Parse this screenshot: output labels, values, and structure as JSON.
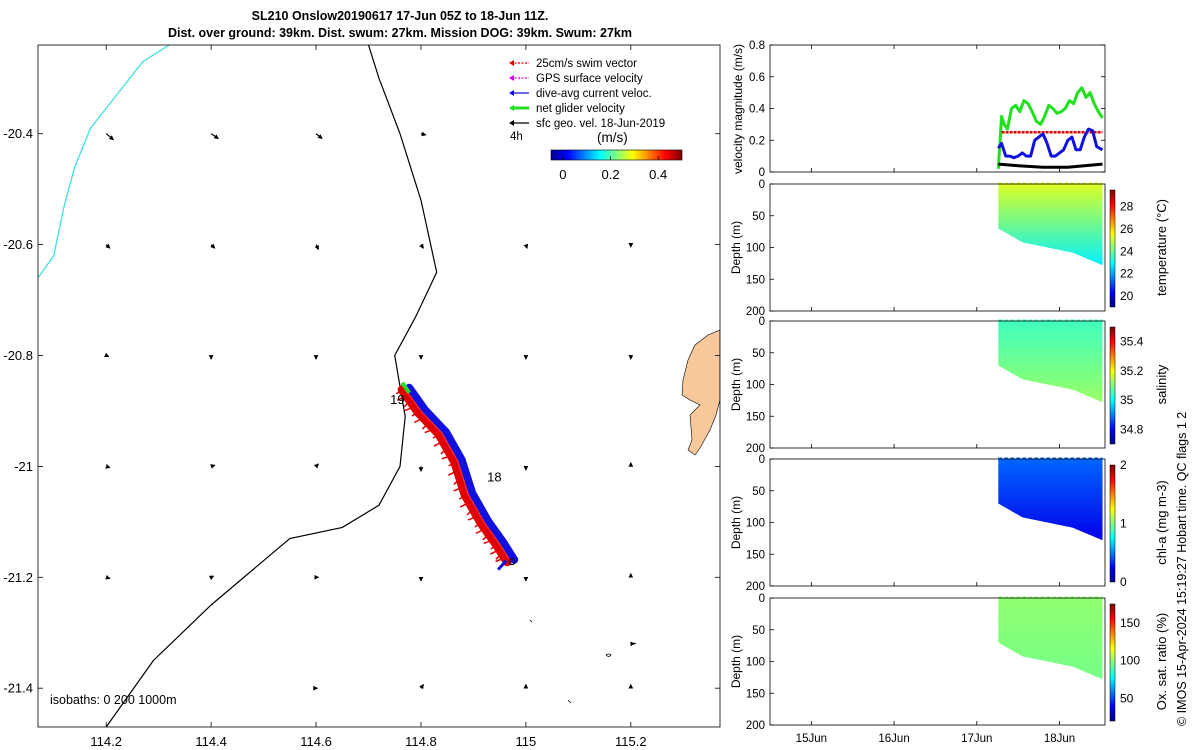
{
  "title_line1": "SL210 Onslow20190617 17-Jun 05Z to 18-Jun 11Z.",
  "title_line2": "Dist. over ground: 39km. Dist. swum: 27km. Mission DOG: 39km. Swum: 27km",
  "footer_vertical": "© IMOS 15-Apr-2024 15:19:27 Hobart time. QC flags 1  2",
  "colors": {
    "swim": "#e00000",
    "gps": "#e000e0",
    "dive_avg": "#1010e0",
    "net": "#20e020",
    "sfc_geo": "#000000",
    "isobath_0": "#40e0e0",
    "land": "#f8c89a"
  },
  "chart_data": [
    {
      "type": "map",
      "name": "glider track map",
      "xticks": [
        "114.2",
        "114.4",
        "114.6",
        "114.8",
        "115",
        "115.2"
      ],
      "xtick_values": [
        114.2,
        114.4,
        114.6,
        114.8,
        115.0,
        115.2
      ],
      "yticks": [
        "-20.4",
        "-20.6",
        "-20.8",
        "-21",
        "-21.2",
        "-21.4"
      ],
      "ytick_values": [
        -20.4,
        -20.6,
        -20.8,
        -21.0,
        -21.2,
        -21.4
      ],
      "xlim": [
        114.07,
        115.37
      ],
      "ylim": [
        -21.47,
        -20.24
      ],
      "legend": [
        {
          "label": "25cm/s swim vector",
          "color": "#e00000"
        },
        {
          "label": "GPS surface velocity",
          "color": "#e000e0"
        },
        {
          "label": "dive-avg current veloc.",
          "color": "#1010e0"
        },
        {
          "label": "net glider velocity",
          "color": "#20e020"
        },
        {
          "label": "sfc geo. vel. 18-Jun-2019",
          "color": "#000000"
        }
      ],
      "legend_extra": "4h",
      "colorbar": {
        "label": "(m/s)",
        "ticks": [
          "0",
          "0.2",
          "0.4"
        ],
        "tick_values": [
          0,
          0.2,
          0.4
        ],
        "range": [
          -0.05,
          0.5
        ]
      },
      "day_labels": [
        {
          "text": "19",
          "lon": 114.755,
          "lat": -20.88
        },
        {
          "text": "18",
          "lon": 114.94,
          "lat": -21.02
        }
      ],
      "isobath_text": "isobaths: 0   200  1000m",
      "track": [
        [
          114.77,
          -20.86
        ],
        [
          114.8,
          -20.9
        ],
        [
          114.84,
          -20.94
        ],
        [
          114.87,
          -20.99
        ],
        [
          114.89,
          -21.05
        ],
        [
          114.92,
          -21.1
        ],
        [
          114.95,
          -21.14
        ],
        [
          114.97,
          -21.17
        ]
      ],
      "isobath_0": [
        [
          114.07,
          -20.66
        ],
        [
          114.1,
          -20.62
        ],
        [
          114.12,
          -20.53
        ],
        [
          114.14,
          -20.46
        ],
        [
          114.17,
          -20.39
        ],
        [
          114.22,
          -20.33
        ],
        [
          114.27,
          -20.27
        ],
        [
          114.32,
          -20.24
        ]
      ],
      "isobath_200": [
        [
          114.2,
          -21.47
        ],
        [
          114.29,
          -21.35
        ],
        [
          114.4,
          -21.25
        ],
        [
          114.55,
          -21.13
        ],
        [
          114.65,
          -21.11
        ],
        [
          114.72,
          -21.07
        ],
        [
          114.76,
          -21.0
        ],
        [
          114.77,
          -20.91
        ],
        [
          114.75,
          -20.8
        ],
        [
          114.79,
          -20.73
        ],
        [
          114.83,
          -20.65
        ],
        [
          114.8,
          -20.52
        ],
        [
          114.76,
          -20.4
        ],
        [
          114.72,
          -20.3
        ],
        [
          114.7,
          -20.24
        ]
      ],
      "vectors": [
        {
          "lon": 114.2,
          "lat": -20.4,
          "u": 0.06,
          "v": -0.05
        },
        {
          "lon": 114.4,
          "lat": -20.4,
          "u": 0.06,
          "v": -0.04
        },
        {
          "lon": 114.6,
          "lat": -20.4,
          "u": 0.05,
          "v": -0.04
        },
        {
          "lon": 114.8,
          "lat": -20.4,
          "u": 0.04,
          "v": -0.01
        },
        {
          "lon": 114.2,
          "lat": -20.6,
          "u": 0.03,
          "v": -0.03
        },
        {
          "lon": 114.4,
          "lat": -20.6,
          "u": 0.03,
          "v": -0.03
        },
        {
          "lon": 114.6,
          "lat": -20.6,
          "u": 0.02,
          "v": -0.04
        },
        {
          "lon": 114.8,
          "lat": -20.6,
          "u": 0.02,
          "v": -0.03
        },
        {
          "lon": 115.0,
          "lat": -20.6,
          "u": 0.01,
          "v": -0.03
        },
        {
          "lon": 115.2,
          "lat": -20.6,
          "u": 0.0,
          "v": -0.02
        },
        {
          "lon": 114.2,
          "lat": -20.8,
          "u": 0.02,
          "v": -0.01
        },
        {
          "lon": 114.4,
          "lat": -20.8,
          "u": 0.0,
          "v": -0.03
        },
        {
          "lon": 114.6,
          "lat": -20.8,
          "u": 0.0,
          "v": -0.03
        },
        {
          "lon": 114.8,
          "lat": -20.8,
          "u": 0.0,
          "v": -0.03
        },
        {
          "lon": 115.0,
          "lat": -20.8,
          "u": 0.0,
          "v": -0.03
        },
        {
          "lon": 115.2,
          "lat": -20.8,
          "u": 0.0,
          "v": -0.03
        },
        {
          "lon": 114.2,
          "lat": -21.0,
          "u": 0.03,
          "v": -0.01
        },
        {
          "lon": 114.4,
          "lat": -21.0,
          "u": 0.03,
          "v": 0.01
        },
        {
          "lon": 114.6,
          "lat": -21.0,
          "u": 0.02,
          "v": 0.02
        },
        {
          "lon": 114.8,
          "lat": -21.0,
          "u": 0.0,
          "v": -0.04
        },
        {
          "lon": 115.0,
          "lat": -21.0,
          "u": 0.0,
          "v": -0.03
        },
        {
          "lon": 115.2,
          "lat": -21.0,
          "u": 0.0,
          "v": 0.03
        },
        {
          "lon": 114.2,
          "lat": -21.2,
          "u": 0.03,
          "v": -0.01
        },
        {
          "lon": 114.4,
          "lat": -21.2,
          "u": 0.02,
          "v": 0.01
        },
        {
          "lon": 114.6,
          "lat": -21.2,
          "u": 0.02,
          "v": 0.0
        },
        {
          "lon": 114.8,
          "lat": -21.2,
          "u": 0.0,
          "v": -0.03
        },
        {
          "lon": 115.0,
          "lat": -21.2,
          "u": 0.0,
          "v": -0.03
        },
        {
          "lon": 115.2,
          "lat": -21.2,
          "u": 0.0,
          "v": 0.03
        },
        {
          "lon": 115.2,
          "lat": -21.32,
          "u": 0.03,
          "v": 0.0
        },
        {
          "lon": 114.6,
          "lat": -21.4,
          "u": 0.01,
          "v": 0.0
        },
        {
          "lon": 114.8,
          "lat": -21.4,
          "u": 0.02,
          "v": 0.03
        },
        {
          "lon": 115.0,
          "lat": -21.4,
          "u": 0.0,
          "v": 0.03
        },
        {
          "lon": 115.2,
          "lat": -21.4,
          "u": 0.0,
          "v": 0.03
        }
      ]
    },
    {
      "type": "line",
      "name": "velocity magnitude",
      "ylabel": "velocity magnitude (m/s)",
      "ylim": [
        0,
        0.8
      ],
      "yticks": [
        "0",
        "0.2",
        "0.4",
        "0.6",
        "0.8"
      ],
      "ytick_values": [
        0,
        0.2,
        0.4,
        0.6,
        0.8
      ],
      "xlim": [
        14.5,
        18.55
      ],
      "series": [
        {
          "color": "#20e020",
          "x": [
            17.26,
            17.3,
            17.33,
            17.37,
            17.42,
            17.47,
            17.52,
            17.57,
            17.62,
            17.67,
            17.72,
            17.77,
            17.82,
            17.87,
            17.92,
            17.97,
            18.02,
            18.07,
            18.12,
            18.17,
            18.22,
            18.27,
            18.32,
            18.37,
            18.42,
            18.47,
            18.52
          ],
          "values": [
            0.02,
            0.35,
            0.3,
            0.27,
            0.4,
            0.42,
            0.38,
            0.45,
            0.43,
            0.38,
            0.32,
            0.3,
            0.35,
            0.42,
            0.4,
            0.37,
            0.38,
            0.4,
            0.45,
            0.43,
            0.5,
            0.53,
            0.47,
            0.5,
            0.43,
            0.38,
            0.34
          ]
        },
        {
          "color": "#e00000",
          "x": [
            17.3,
            18.52
          ],
          "values": [
            0.25,
            0.25
          ]
        },
        {
          "color": "#1010e0",
          "x": [
            17.26,
            17.3,
            17.35,
            17.4,
            17.45,
            17.5,
            17.55,
            17.6,
            17.65,
            17.7,
            17.75,
            17.8,
            17.85,
            17.9,
            17.95,
            18.0,
            18.05,
            18.1,
            18.15,
            18.2,
            18.25,
            18.3,
            18.35,
            18.4,
            18.45,
            18.52
          ],
          "values": [
            0.15,
            0.18,
            0.1,
            0.1,
            0.09,
            0.1,
            0.12,
            0.1,
            0.1,
            0.2,
            0.22,
            0.24,
            0.18,
            0.1,
            0.1,
            0.12,
            0.14,
            0.2,
            0.22,
            0.14,
            0.14,
            0.22,
            0.27,
            0.26,
            0.16,
            0.14
          ]
        },
        {
          "color": "#000000",
          "x": [
            17.26,
            17.5,
            17.8,
            18.1,
            18.3,
            18.52
          ],
          "values": [
            0.05,
            0.04,
            0.03,
            0.03,
            0.04,
            0.05
          ]
        }
      ]
    },
    {
      "type": "heatmap",
      "name": "temperature section",
      "ylabel": "Depth (m)",
      "ylim": [
        0,
        200
      ],
      "yticks": [
        "0",
        "50",
        "100",
        "150",
        "200"
      ],
      "ytick_values": [
        0,
        50,
        100,
        150,
        200
      ],
      "colorbar_label": "temperature (°C)",
      "colorbar_ticks": [
        "20",
        "22",
        "24",
        "26",
        "28"
      ],
      "colorbar_values": [
        20,
        22,
        24,
        26,
        28
      ],
      "colorbar_range": [
        19,
        29.5
      ],
      "surface_value": 25.2,
      "deep_value": 22.8
    },
    {
      "type": "heatmap",
      "name": "salinity section",
      "ylabel": "Depth (m)",
      "ylim": [
        0,
        200
      ],
      "yticks": [
        "0",
        "50",
        "100",
        "150",
        "200"
      ],
      "ytick_values": [
        0,
        50,
        100,
        150,
        200
      ],
      "colorbar_label": "salinity",
      "colorbar_ticks": [
        "34.8",
        "35",
        "35.2",
        "35.4"
      ],
      "colorbar_values": [
        34.8,
        35.0,
        35.2,
        35.4
      ],
      "colorbar_range": [
        34.7,
        35.5
      ],
      "surface_value": 35.05,
      "deep_value": 35.12
    },
    {
      "type": "heatmap",
      "name": "chlorophyll section",
      "ylabel": "Depth (m)",
      "ylim": [
        0,
        200
      ],
      "yticks": [
        "0",
        "50",
        "100",
        "150",
        "200"
      ],
      "ytick_values": [
        0,
        50,
        100,
        150,
        200
      ],
      "colorbar_label": "chl-a (mg m-3)",
      "colorbar_ticks": [
        "0",
        "1",
        "2"
      ],
      "colorbar_values": [
        0,
        1,
        2
      ],
      "colorbar_range": [
        0,
        2
      ],
      "surface_value": 0.45,
      "deep_value": 0.2
    },
    {
      "type": "heatmap",
      "name": "oxygen saturation section",
      "ylabel": "Depth (m)",
      "ylim": [
        0,
        200
      ],
      "yticks": [
        "0",
        "50",
        "100",
        "150",
        "200"
      ],
      "ytick_values": [
        0,
        50,
        100,
        150,
        200
      ],
      "colorbar_label": "Ox. sat. ratio (%)",
      "colorbar_ticks": [
        "50",
        "100",
        "150"
      ],
      "colorbar_values": [
        50,
        100,
        150
      ],
      "colorbar_range": [
        20,
        175
      ],
      "surface_value": 100,
      "deep_value": 96
    },
    {
      "type": "time-axis",
      "xticks": [
        "15Jun",
        "16Jun",
        "17Jun",
        "18Jun"
      ],
      "xtick_values": [
        15,
        16,
        17,
        18
      ],
      "xlim": [
        14.5,
        18.55
      ],
      "glider_start": 17.26,
      "glider_end": 18.52,
      "max_depth_start": 70,
      "max_depth_end": 128
    }
  ]
}
